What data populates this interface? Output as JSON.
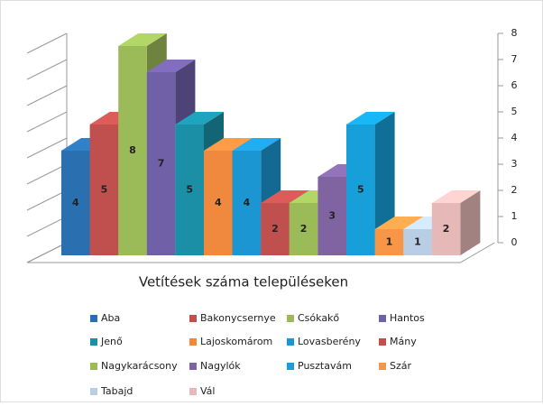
{
  "chart_data": {
    "type": "bar3d",
    "title": "Vetítések száma településeken",
    "categories": [
      "Aba",
      "Bakonycsernye",
      "Csókakő",
      "Hantos",
      "Jenő",
      "Lajoskomárom",
      "Lovasberény",
      "Mány",
      "Nagykarácsony",
      "Nagylók",
      "Pusztavám",
      "Szár",
      "Tabajd",
      "Vál"
    ],
    "values": [
      4,
      5,
      8,
      7,
      5,
      4,
      4,
      2,
      2,
      3,
      5,
      1,
      1,
      2
    ],
    "colors": [
      "#2a6fb0",
      "#c0504d",
      "#9bbb59",
      "#7060a8",
      "#1b8fa6",
      "#f0883e",
      "#1c96d2",
      "#c0504d",
      "#9bbb59",
      "#8064a2",
      "#169fd8",
      "#f79646",
      "#b9cde5",
      "#e6b9b8"
    ],
    "ylim": [
      0,
      8
    ],
    "yticks": [
      0,
      1,
      2,
      3,
      4,
      5,
      6,
      7,
      8
    ],
    "grid": true
  }
}
